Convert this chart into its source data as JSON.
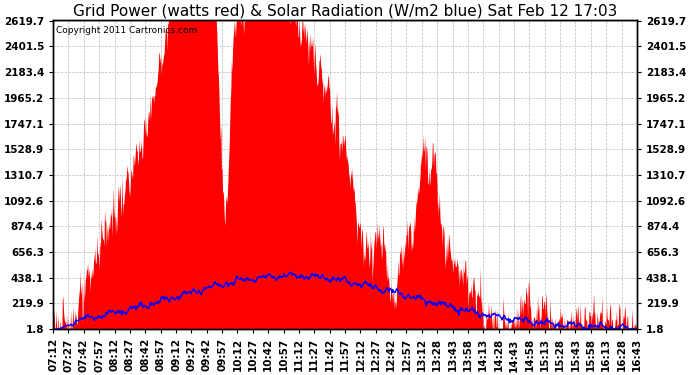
{
  "title": "Grid Power (watts red) & Solar Radiation (W/m2 blue) Sat Feb 12 17:03",
  "copyright": "Copyright 2011 Cartronics.com",
  "yticks": [
    1.8,
    219.9,
    438.1,
    656.3,
    874.4,
    1092.6,
    1310.7,
    1528.9,
    1747.1,
    1965.2,
    2183.4,
    2401.5,
    2619.7
  ],
  "xtick_labels": [
    "07:12",
    "07:27",
    "07:42",
    "07:57",
    "08:12",
    "08:27",
    "08:42",
    "08:57",
    "09:12",
    "09:27",
    "09:42",
    "09:57",
    "10:12",
    "10:27",
    "10:42",
    "10:57",
    "11:12",
    "11:27",
    "11:42",
    "11:57",
    "12:12",
    "12:27",
    "12:42",
    "12:57",
    "13:12",
    "13:28",
    "13:43",
    "13:58",
    "14:13",
    "14:28",
    "14:43",
    "14:58",
    "15:13",
    "15:28",
    "15:43",
    "15:58",
    "16:13",
    "16:28",
    "16:43"
  ],
  "background_color": "#ffffff",
  "plot_bg_color": "#ffffff",
  "grid_color": "#aaaaaa",
  "red_color": "#ff0000",
  "blue_color": "#0000ff",
  "title_fontsize": 11,
  "tick_fontsize": 7.5,
  "ymax": 2619.7,
  "ymin": 1.8,
  "total_minutes": 571
}
